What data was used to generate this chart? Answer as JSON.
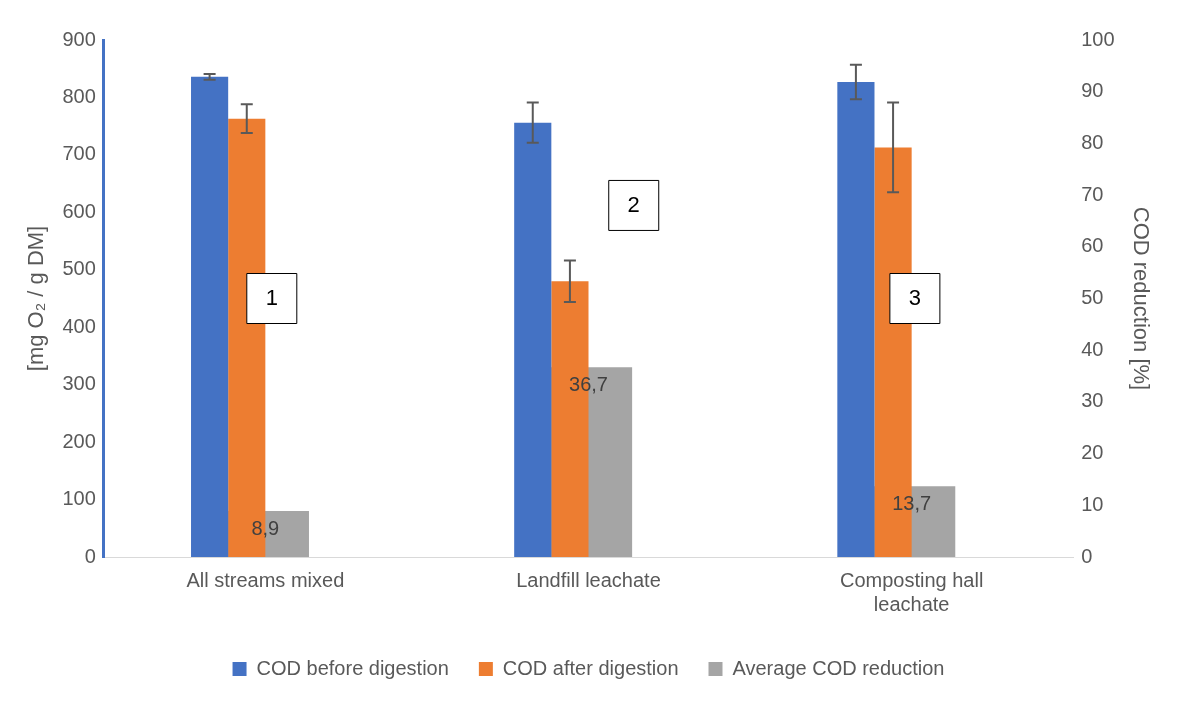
{
  "chart_data": {
    "type": "bar",
    "ylabel": "[mg O₂ / g DM]",
    "y2label": "COD reduction [%]",
    "categories": [
      "All streams mixed",
      "Landfill leachate",
      "Composting hall leachate"
    ],
    "series": [
      {
        "name": "COD before digestion",
        "color": "#4472c4",
        "values": [
          836,
          756,
          827
        ],
        "errors": [
          5,
          35,
          30
        ]
      },
      {
        "name": "COD after digestion",
        "color": "#ed7d31",
        "values": [
          763,
          480,
          713
        ],
        "errors": [
          25,
          36,
          78
        ]
      },
      {
        "name": "Average COD reduction",
        "color": "#a5a5a5",
        "axis": "y2",
        "values": [
          8.9,
          36.7,
          13.7
        ],
        "value_labels": [
          "8,9",
          "36,7",
          "13,7"
        ]
      }
    ],
    "ylim": [
      0,
      900
    ],
    "yticks": [
      0,
      100,
      200,
      300,
      400,
      500,
      600,
      700,
      800,
      900
    ],
    "y2lim": [
      0,
      100
    ],
    "y2ticks": [
      0,
      10,
      20,
      30,
      40,
      50,
      60,
      70,
      80,
      90,
      100
    ],
    "grid": false,
    "legend": "bottom",
    "annotations": [
      "1",
      "2",
      "3"
    ]
  }
}
